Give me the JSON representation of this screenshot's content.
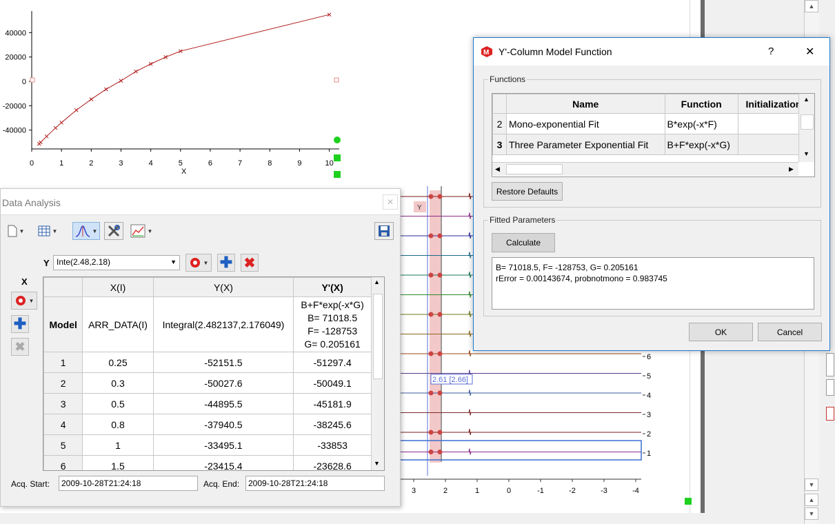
{
  "top_chart": {
    "x_ticks": [
      "0",
      "1",
      "2",
      "3",
      "4",
      "5",
      "6",
      "7",
      "8",
      "9",
      "10"
    ],
    "y_ticks": [
      "40000",
      "20000",
      "0",
      "-20000",
      "-40000"
    ],
    "x_label": "X",
    "colors": {
      "line": "#b01818"
    }
  },
  "chart_data": {
    "type": "line",
    "xlabel": "X",
    "ylabel": "",
    "xlim": [
      0,
      10.4
    ],
    "ylim": [
      -54000,
      56000
    ],
    "x": [
      0.25,
      0.3,
      0.5,
      0.8,
      1,
      1.5,
      2,
      2.5,
      3,
      3.5,
      4,
      4.5,
      5,
      10
    ],
    "y": [
      -51297.4,
      -50049.1,
      -45181.9,
      -38245.6,
      -33853,
      -23628.6,
      -14700,
      -6500,
      500,
      8100,
      14300,
      19900,
      24800,
      54800
    ]
  },
  "bg_axis": {
    "x_ticks": [
      "3",
      "2",
      "1",
      "0",
      "-1",
      "-2",
      "-3",
      "-4"
    ],
    "right_ticks": [
      "6",
      "5",
      "4",
      "3",
      "2",
      "1"
    ],
    "cursor_label": "2.61 [2.66]",
    "y_marker": "Y"
  },
  "data_analysis": {
    "title": "Data Analysis",
    "y_label": "Y",
    "y_combo": "Inte(2.48,2.18)",
    "x_label": "X",
    "columns": [
      "X(I)",
      "Y(X)",
      "Y'(X)"
    ],
    "model_label": "Model",
    "model_row": {
      "x": "ARR_DATA(I)",
      "y": "Integral(2.482137,2.176049)",
      "yp": [
        "B+F*exp(-x*G)",
        "B= 71018.5",
        "F= -128753",
        "G= 0.205161"
      ]
    },
    "rows": [
      {
        "n": "1",
        "x": "0.25",
        "y": "-52151.5",
        "yp": "-51297.4"
      },
      {
        "n": "2",
        "x": "0.3",
        "y": "-50027.6",
        "yp": "-50049.1"
      },
      {
        "n": "3",
        "x": "0.5",
        "y": "-44895.5",
        "yp": "-45181.9"
      },
      {
        "n": "4",
        "x": "0.8",
        "y": "-37940.5",
        "yp": "-38245.6"
      },
      {
        "n": "5",
        "x": "1",
        "y": "-33495.1",
        "yp": "-33853"
      },
      {
        "n": "6",
        "x": "1.5",
        "y": "-23415.4",
        "yp": "-23628.6"
      }
    ],
    "acq_start_label": "Acq. Start:",
    "acq_start": "2009-10-28T21:24:18",
    "acq_end_label": "Acq. End:",
    "acq_end": "2009-10-28T21:24:18"
  },
  "dialog": {
    "title": "Y'-Column Model Function",
    "help": "?",
    "close": "✕",
    "functions_group": "Functions",
    "columns": [
      "Name",
      "Function",
      "Initialization"
    ],
    "rows": [
      {
        "n": "2",
        "name": "Mono-exponential Fit",
        "func": "B*exp(-x*F)",
        "init": ""
      },
      {
        "n": "3",
        "name": "Three Parameter Exponential Fit",
        "func": "B+F*exp(-x*G)",
        "init": ""
      }
    ],
    "restore": "Restore Defaults",
    "fitted_group": "Fitted Parameters",
    "calculate": "Calculate",
    "result_line1": "B= 71018.5, F= -128753, G= 0.205161",
    "result_line2": "rError = 0.00143674, probnotmono = 0.983745",
    "ok": "OK",
    "cancel": "Cancel"
  }
}
